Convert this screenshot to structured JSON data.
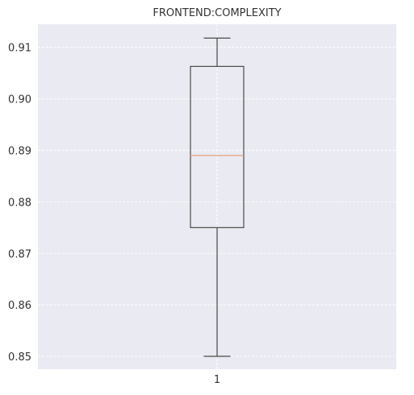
{
  "chart_data": {
    "type": "box",
    "title": "FRONTEND:COMPLEXITY",
    "xlabel": "",
    "ylabel": "",
    "categories": [
      "1"
    ],
    "ylim": [
      0.8475,
      0.9145
    ],
    "yticks": [
      0.85,
      0.86,
      0.87,
      0.88,
      0.89,
      0.9,
      0.91
    ],
    "ytick_labels": [
      "0.85",
      "0.86",
      "0.87",
      "0.88",
      "0.89",
      "0.90",
      "0.91"
    ],
    "boxes": [
      {
        "category": "1",
        "whisker_low": 0.85,
        "q1": 0.875,
        "median": 0.889,
        "q3": 0.9063,
        "whisker_high": 0.9118
      }
    ],
    "grid": true,
    "colors": {
      "background": "#eaeaf2",
      "grid": "#ffffff",
      "box": "#4a4a4a",
      "median": "#e8a07a",
      "text": "#333333"
    }
  }
}
